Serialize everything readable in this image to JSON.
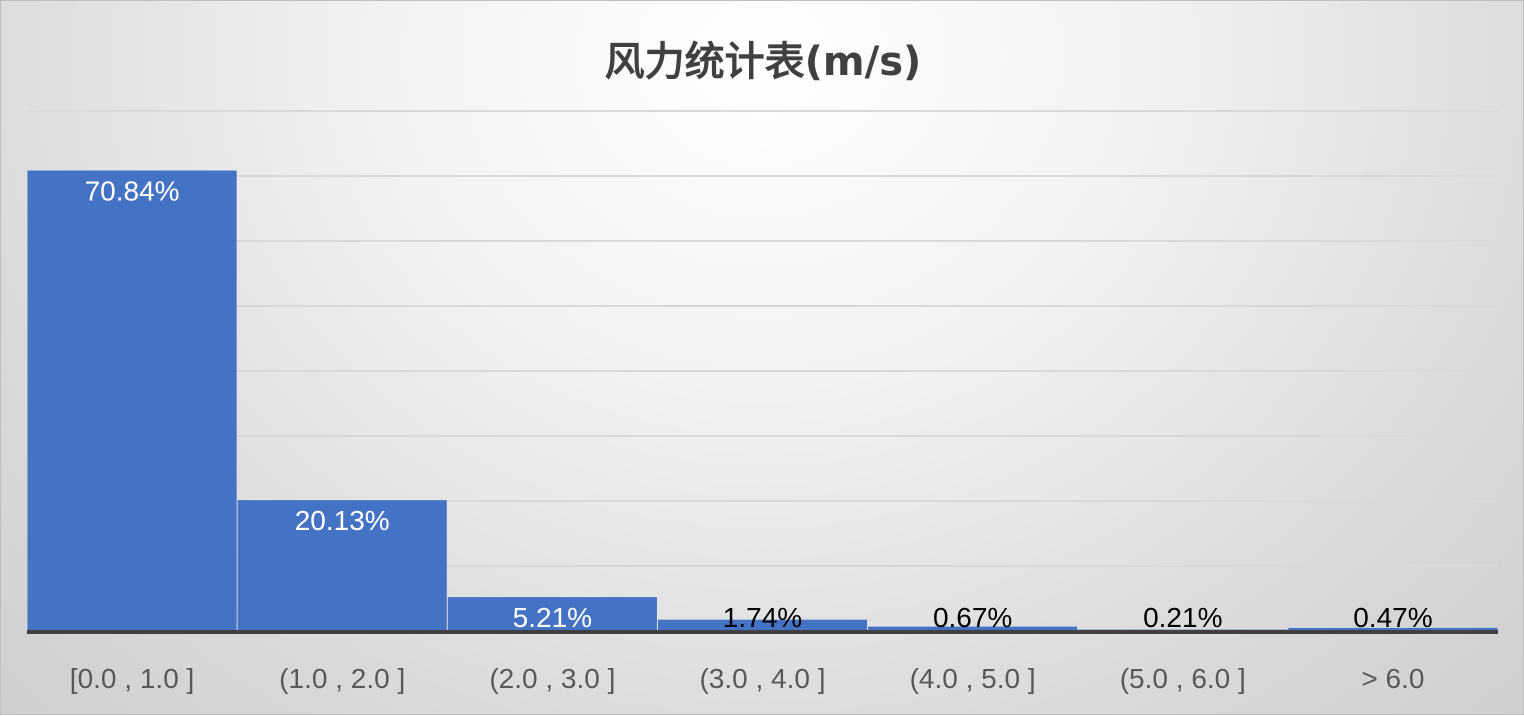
{
  "chart_data": {
    "type": "bar",
    "title": "风力统计表(m/s)",
    "categories": [
      "[0.0 , 1.0 ]",
      "(1.0 , 2.0 ]",
      "(2.0 , 3.0 ]",
      "(3.0 , 4.0 ]",
      "(4.0 , 5.0 ]",
      "(5.0 , 6.0 ]",
      "> 6.0"
    ],
    "values": [
      70.84,
      20.13,
      5.21,
      1.74,
      0.67,
      0.21,
      0.47
    ],
    "data_labels": [
      "70.84%",
      "20.13%",
      "5.21%",
      "1.74%",
      "0.67%",
      "0.21%",
      "0.47%"
    ],
    "xlabel": "",
    "ylabel": "",
    "ylim": [
      0,
      80
    ],
    "grid": true,
    "legend": "none",
    "colors": {
      "bar": "#4472C4",
      "label_inside": "#FFFFFF",
      "label_outside": "#000000",
      "axis": "#404040",
      "grid": "#d9d9d9"
    }
  }
}
